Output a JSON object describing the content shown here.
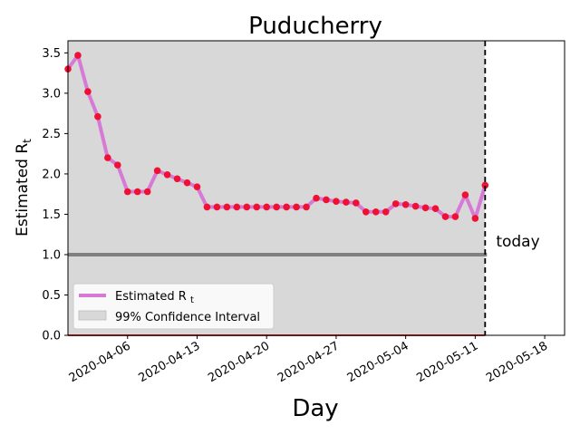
{
  "chart_data": {
    "type": "line",
    "title": "Puducherry",
    "xlabel": "Day",
    "ylabel": "Estimated R",
    "ylabel_sub": "t",
    "ylim": [
      0,
      3.65
    ],
    "xlim": [
      "2020-03-31",
      "2020-05-20"
    ],
    "yticks": [
      "0.0",
      "0.5",
      "1.0",
      "1.5",
      "2.0",
      "2.5",
      "3.0",
      "3.5"
    ],
    "xticks": [
      "2020-04-06",
      "2020-04-13",
      "2020-04-20",
      "2020-04-27",
      "2020-05-04",
      "2020-05-11",
      "2020-05-18"
    ],
    "x": [
      "2020-03-31",
      "2020-04-01",
      "2020-04-02",
      "2020-04-03",
      "2020-04-04",
      "2020-04-05",
      "2020-04-06",
      "2020-04-07",
      "2020-04-08",
      "2020-04-09",
      "2020-04-10",
      "2020-04-11",
      "2020-04-12",
      "2020-04-13",
      "2020-04-14",
      "2020-04-15",
      "2020-04-16",
      "2020-04-17",
      "2020-04-18",
      "2020-04-19",
      "2020-04-20",
      "2020-04-21",
      "2020-04-22",
      "2020-04-23",
      "2020-04-24",
      "2020-04-25",
      "2020-04-26",
      "2020-04-27",
      "2020-04-28",
      "2020-04-29",
      "2020-04-30",
      "2020-05-01",
      "2020-05-02",
      "2020-05-03",
      "2020-05-04",
      "2020-05-05",
      "2020-05-06",
      "2020-05-07",
      "2020-05-08",
      "2020-05-09",
      "2020-05-10",
      "2020-05-11",
      "2020-05-12"
    ],
    "series": [
      {
        "name": "Estimated R",
        "name_sub": "t",
        "color": "#d67ad6",
        "marker_color": "#ee1133",
        "values": [
          3.3,
          3.47,
          3.02,
          2.71,
          2.2,
          2.11,
          1.78,
          1.78,
          1.78,
          2.04,
          1.99,
          1.94,
          1.89,
          1.84,
          1.59,
          1.59,
          1.59,
          1.59,
          1.59,
          1.59,
          1.59,
          1.59,
          1.59,
          1.59,
          1.59,
          1.7,
          1.68,
          1.66,
          1.65,
          1.64,
          1.53,
          1.53,
          1.53,
          1.63,
          1.62,
          1.6,
          1.58,
          1.57,
          1.47,
          1.47,
          1.74,
          1.45,
          1.86
        ]
      }
    ],
    "confidence_band": {
      "name": "99% Confidence Interval",
      "lower": 0,
      "upper": 3.65,
      "color": "#d8d8d8"
    },
    "reference_line": {
      "y": 1.0,
      "color": "#808080"
    },
    "today": {
      "x": "2020-05-12",
      "label": "today"
    },
    "legend_placement": "lower-left",
    "grid": false
  }
}
